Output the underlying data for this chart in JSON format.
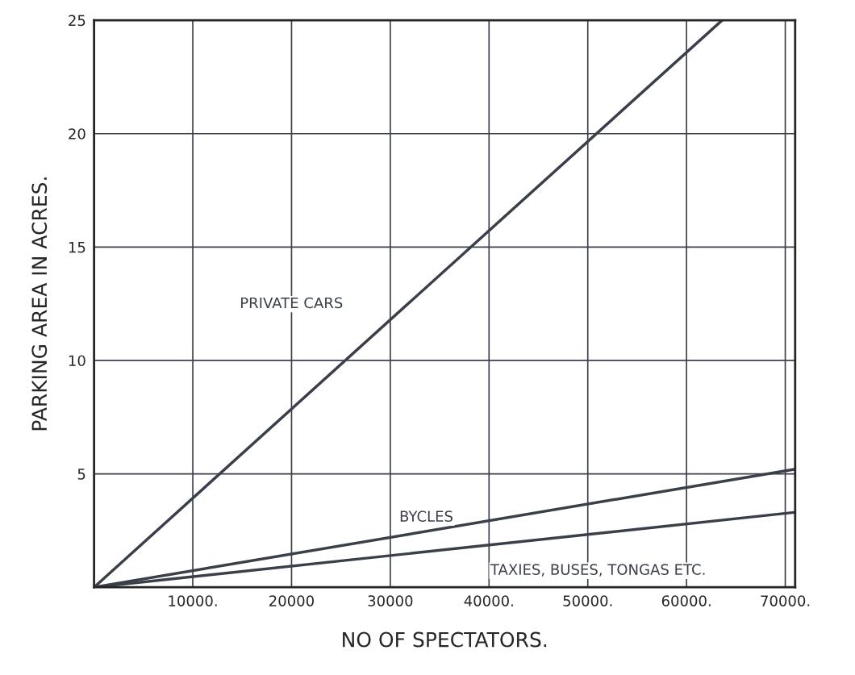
{
  "chart_data": {
    "type": "line",
    "xlabel": "NO OF SPECTATORS.",
    "ylabel": "PARKING AREA IN ACRES.",
    "x": [
      0,
      70900
    ],
    "series": [
      {
        "name": "PRIVATE CARS",
        "color": "#3a3f4a",
        "x": [
          0,
          63600
        ],
        "values": [
          0,
          25
        ]
      },
      {
        "name": "BYCLES",
        "color": "#3a3f4a",
        "values": [
          0,
          5.2
        ]
      },
      {
        "name": "TAXIES, BUSES, TONGAS ETC.",
        "color": "#3a3f4a",
        "values": [
          0,
          3.3
        ]
      }
    ],
    "xlim": [
      0,
      71000
    ],
    "ylim": [
      0,
      25
    ],
    "xticks": [
      {
        "value": 10000,
        "label": "10000."
      },
      20000,
      30000,
      {
        "value": 40000,
        "label": "40000."
      },
      {
        "value": 50000,
        "label": "50000."
      },
      {
        "value": 60000,
        "label": "60000."
      },
      {
        "value": 70000,
        "label": "70000."
      }
    ],
    "yticks": [
      5,
      10,
      15,
      20,
      25
    ],
    "grid": true,
    "line_style": "solid",
    "marker": "none"
  }
}
